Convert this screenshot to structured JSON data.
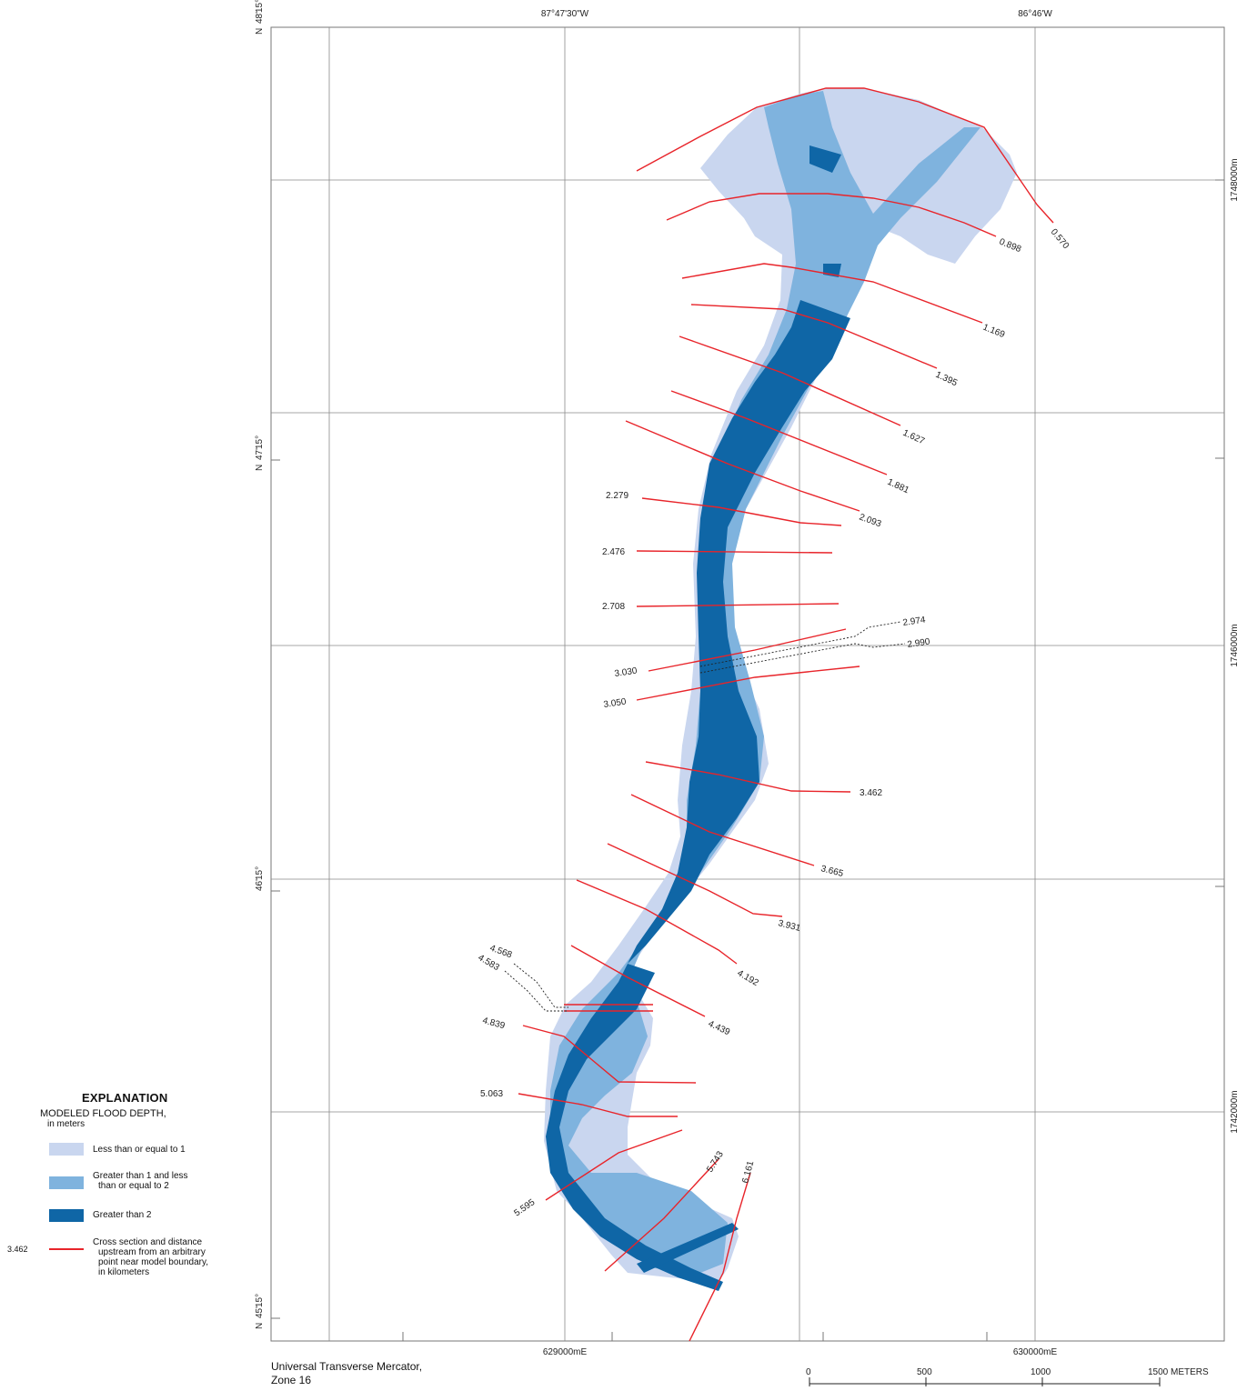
{
  "grid": {
    "top_labels": [
      "87°47'30\"W",
      "86°46'W"
    ],
    "left_labels": [
      {
        "lines": [
          "15°",
          "48'",
          "N"
        ]
      },
      {
        "lines": [
          "15°",
          "47'",
          "N"
        ]
      },
      {
        "lines": [
          "15°",
          "46'",
          "N"
        ]
      },
      {
        "lines": [
          "15°",
          "45'",
          "N"
        ]
      }
    ],
    "right_labels": [
      "1748000m",
      "1746000m",
      "1742000m"
    ],
    "bottom_labels": [
      "629000mE",
      "630000mE"
    ]
  },
  "cross_sections": [
    {
      "label": "0.570"
    },
    {
      "label": "0.898"
    },
    {
      "label": "1.169"
    },
    {
      "label": "1.395"
    },
    {
      "label": "1.627"
    },
    {
      "label": "1.881"
    },
    {
      "label": "2.093"
    },
    {
      "label": "2.279"
    },
    {
      "label": "2.476"
    },
    {
      "label": "2.708"
    },
    {
      "label": "2.974"
    },
    {
      "label": "2.990"
    },
    {
      "label": "3.030"
    },
    {
      "label": "3.050"
    },
    {
      "label": "3.462"
    },
    {
      "label": "3.665"
    },
    {
      "label": "3.931"
    },
    {
      "label": "4.192"
    },
    {
      "label": "4.439"
    },
    {
      "label": "4.568"
    },
    {
      "label": "4.583"
    },
    {
      "label": "4.839"
    },
    {
      "label": "5.063"
    },
    {
      "label": "5.595"
    },
    {
      "label": "5.743"
    },
    {
      "label": "6.161"
    }
  ],
  "legend": {
    "title": "EXPLANATION",
    "subtitle": "MODELED FLOOD DEPTH,",
    "units": "in meters",
    "classes": [
      {
        "label_lines": [
          "Less than or equal to 1"
        ],
        "color": "#c9d6ef"
      },
      {
        "label_lines": [
          "Greater than 1 and less",
          "than or equal to 2"
        ],
        "color": "#7fb3de"
      },
      {
        "label_lines": [
          "Greater than 2"
        ],
        "color": "#0f66a6"
      }
    ],
    "cross_section": {
      "sample_value": "3.462",
      "label_lines": [
        "Cross section and distance",
        "upstream from an arbitrary",
        "point near model boundary,",
        "in kilometers"
      ],
      "color": "#e8242a"
    }
  },
  "projection": [
    "Universal Transverse Mercator,",
    "Zone 16"
  ],
  "scale_bar": {
    "ticks": [
      "0",
      "500",
      "1000",
      "1500 METERS"
    ]
  }
}
